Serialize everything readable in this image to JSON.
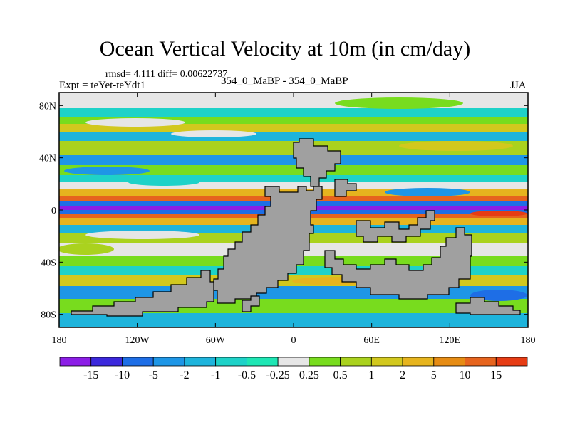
{
  "header": {
    "title": "Ocean Vertical Velocity at 10m (in cm/day)",
    "stats": "rmsd= 4.111 diff= 0.00622737",
    "experiment": "Expt = teYet-teYdt1",
    "comparison": "354_0_MaBP - 354_0_MaBP",
    "season": "JJA"
  },
  "map": {
    "lon_range": [
      -180,
      180
    ],
    "lat_range": [
      -90,
      90
    ],
    "y_ticks": [
      {
        "lat": 80,
        "label": "80N"
      },
      {
        "lat": 40,
        "label": "40N"
      },
      {
        "lat": 0,
        "label": "0"
      },
      {
        "lat": -40,
        "label": "40S"
      },
      {
        "lat": -80,
        "label": "80S"
      }
    ],
    "x_ticks": [
      {
        "lon": -180,
        "label": "180"
      },
      {
        "lon": -120,
        "label": "120W"
      },
      {
        "lon": -60,
        "label": "60W"
      },
      {
        "lon": 0,
        "label": "0"
      },
      {
        "lon": 60,
        "label": "60E"
      },
      {
        "lon": 120,
        "label": "120E"
      },
      {
        "lon": 180,
        "label": "180"
      }
    ],
    "land_color": "#a0a0a0"
  },
  "colorbar": {
    "colors": [
      "#8c1ee6",
      "#3c28dc",
      "#1e6ee6",
      "#1e96e6",
      "#1eb4dc",
      "#1ed2c8",
      "#1ee6b4",
      "#e6e6e6",
      "#78dc1e",
      "#aad21e",
      "#d2c81e",
      "#e6b41e",
      "#e68c14",
      "#e6641e",
      "#e63c14"
    ],
    "labels": [
      "-15",
      "-10",
      "-5",
      "-2",
      "-1",
      "-0.5",
      "-0.25",
      "0.25",
      "0.5",
      "1",
      "2",
      "5",
      "10",
      "15"
    ]
  }
}
